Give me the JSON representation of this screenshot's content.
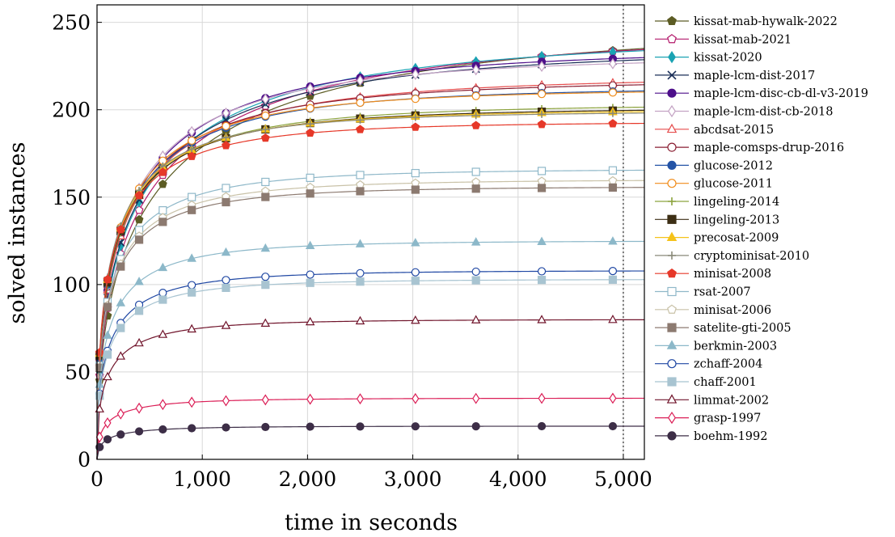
{
  "chart_data": {
    "type": "line",
    "title": "",
    "xlabel": "time in seconds",
    "ylabel": "solved  instances",
    "xlim": [
      0,
      5200
    ],
    "ylim": [
      0,
      260
    ],
    "x_ticks": [
      0,
      1000,
      2000,
      3000,
      4000,
      5000
    ],
    "x_tick_labels": [
      "0",
      "1,000",
      "2,000",
      "3,000",
      "4,000",
      "5,000"
    ],
    "y_ticks": [
      0,
      50,
      100,
      150,
      200,
      250
    ],
    "y_tick_labels": [
      "0",
      "50",
      "100",
      "150",
      "200",
      "250"
    ],
    "grid": true,
    "timeout_line_x": 5000,
    "legend_position": "right",
    "series": [
      {
        "name": "kissat-mab-hywalk-2022",
        "color": "#5c5c24",
        "marker": "pentagon-filled",
        "final": 249
      },
      {
        "name": "kissat-mab-2021",
        "color": "#b3196b",
        "marker": "pentagon-open",
        "final": 245
      },
      {
        "name": "kissat-2020",
        "color": "#1aa3b3",
        "marker": "diamond-filled",
        "final": 242
      },
      {
        "name": "maple-lcm-dist-2017",
        "color": "#1a2e57",
        "marker": "cross",
        "final": 235
      },
      {
        "name": "maple-lcm-disc-cb-dl-v3-2019",
        "color": "#4d0f8a",
        "marker": "circle-filled",
        "final": 235
      },
      {
        "name": "maple-lcm-dist-cb-2018",
        "color": "#c4a3c4",
        "marker": "diamond-open",
        "final": 231
      },
      {
        "name": "abcdsat-2015",
        "color": "#e64d4d",
        "marker": "triangle-open",
        "final": 219
      },
      {
        "name": "maple-comsps-drup-2016",
        "color": "#8a1f33",
        "marker": "circle-open",
        "final": 217
      },
      {
        "name": "glucose-2012",
        "color": "#2454a6",
        "marker": "circle-filled",
        "final": 213
      },
      {
        "name": "glucose-2011",
        "color": "#f08c1a",
        "marker": "circle-open",
        "final": 212
      },
      {
        "name": "lingeling-2014",
        "color": "#8ca33d",
        "marker": "plus",
        "final": 203
      },
      {
        "name": "lingeling-2013",
        "color": "#3d2e14",
        "marker": "square-filled",
        "final": 201
      },
      {
        "name": "precosat-2009",
        "color": "#f5c21a",
        "marker": "triangle-filled",
        "final": 200
      },
      {
        "name": "cryptominisat-2010",
        "color": "#8a8a7a",
        "marker": "plus",
        "final": 199
      },
      {
        "name": "minisat-2008",
        "color": "#e63829",
        "marker": "pentagon-filled",
        "final": 193
      },
      {
        "name": "rsat-2007",
        "color": "#8fb8c9",
        "marker": "square-open",
        "final": 166
      },
      {
        "name": "minisat-2006",
        "color": "#c9c2a8",
        "marker": "pentagon-open",
        "final": 160
      },
      {
        "name": "satelite-gti-2005",
        "color": "#8c7a70",
        "marker": "square-filled",
        "final": 156
      },
      {
        "name": "berkmin-2003",
        "color": "#8cb8c9",
        "marker": "triangle-filled",
        "final": 125
      },
      {
        "name": "zchaff-2004",
        "color": "#1f47a3",
        "marker": "circle-open",
        "final": 108
      },
      {
        "name": "chaff-2001",
        "color": "#a8c4d1",
        "marker": "square-filled",
        "final": 103
      },
      {
        "name": "limmat-2002",
        "color": "#70142b",
        "marker": "triangle-open",
        "final": 80
      },
      {
        "name": "grasp-1997",
        "color": "#db1f57",
        "marker": "diamond-open",
        "final": 35
      },
      {
        "name": "boehm-1992",
        "color": "#3d2e47",
        "marker": "circle-filled",
        "final": 19
      }
    ]
  }
}
